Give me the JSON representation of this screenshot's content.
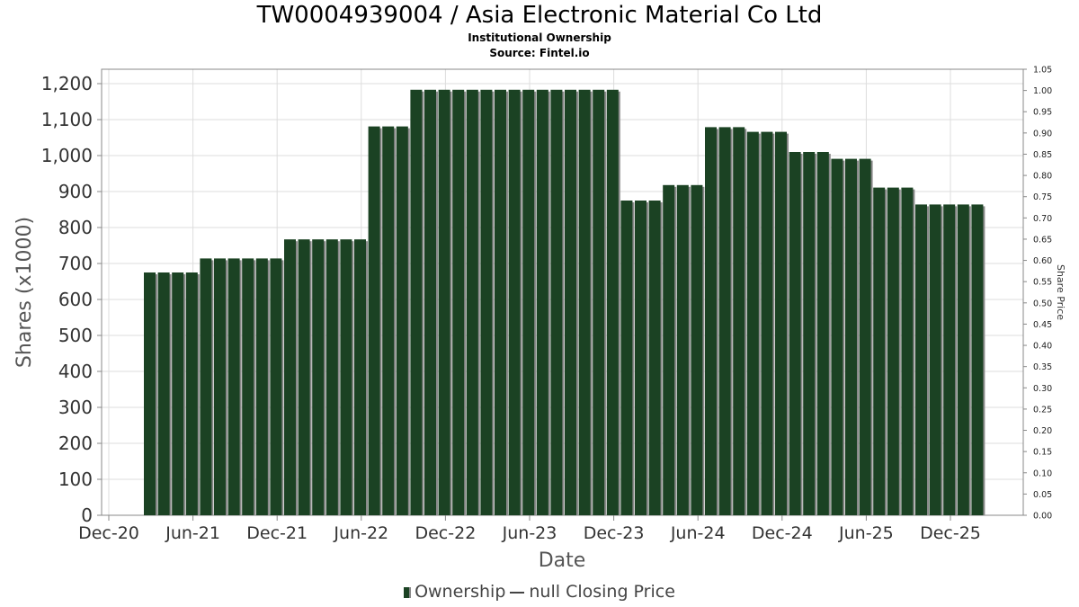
{
  "title": "TW0004939004 / Asia Electronic Material Co Ltd",
  "subtitle1": "Institutional Ownership",
  "subtitle2": "Source: Fintel.io",
  "legend": {
    "ownership_label": "Ownership",
    "price_label": "null Closing Price"
  },
  "colors": {
    "bar": "#1b4223",
    "bar_shadow": "#8a8a8a",
    "grid": "#dddddd"
  },
  "chart_data": {
    "type": "bar",
    "xlabel": "Date",
    "ylabel": "Shares (x1000)",
    "y2label": "Share Price",
    "ylim": [
      0,
      1240
    ],
    "y2lim": [
      0,
      1.05
    ],
    "yticks": [
      0,
      100,
      200,
      300,
      400,
      500,
      600,
      700,
      800,
      900,
      1000,
      1100,
      1200
    ],
    "ytick_labels": [
      "0",
      "100",
      "200",
      "300",
      "400",
      "500",
      "600",
      "700",
      "800",
      "900",
      "1,000",
      "1,100",
      "1,200"
    ],
    "y2ticks": [
      "0.00",
      "0.05",
      "0.10",
      "0.15",
      "0.20",
      "0.25",
      "0.30",
      "0.35",
      "0.40",
      "0.45",
      "0.50",
      "0.55",
      "0.60",
      "0.65",
      "0.70",
      "0.75",
      "0.80",
      "0.85",
      "0.90",
      "0.95",
      "1.00",
      "1.05"
    ],
    "xticks": [
      "Dec-20",
      "Jun-21",
      "Dec-21",
      "Jun-22",
      "Dec-22",
      "Jun-23",
      "Dec-23",
      "Jun-24",
      "Dec-24",
      "Jun-25",
      "Dec-25"
    ],
    "grid": true,
    "series": [
      {
        "name": "Ownership",
        "values": [
          675,
          675,
          675,
          675,
          714,
          714,
          714,
          714,
          714,
          714,
          767,
          767,
          767,
          767,
          767,
          767,
          1081,
          1081,
          1081,
          1183,
          1183,
          1183,
          1183,
          1183,
          1183,
          1183,
          1183,
          1183,
          1183,
          1183,
          1183,
          1183,
          1183,
          1183,
          875,
          875,
          875,
          918,
          918,
          918,
          1079,
          1079,
          1079,
          1066,
          1066,
          1066,
          1010,
          1010,
          1010,
          991,
          991,
          991,
          911,
          911,
          911,
          864,
          864,
          864,
          864,
          864
        ]
      }
    ]
  }
}
